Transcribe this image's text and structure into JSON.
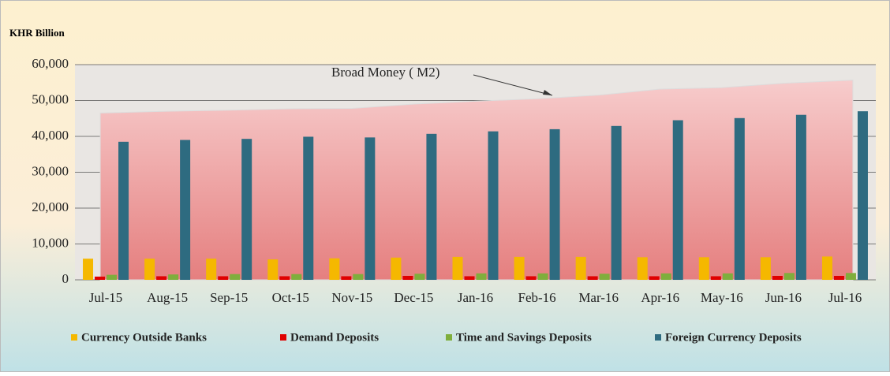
{
  "chart_data": {
    "type": "bar",
    "y_label": "KHR Billion",
    "categories": [
      "Jul-15",
      "Aug-15",
      "Sep-15",
      "Oct-15",
      "Nov-15",
      "Dec-15",
      "Jan-16",
      "Feb-16",
      "Mar-16",
      "Apr-16",
      "May-16",
      "Jun-16",
      "Jul-16"
    ],
    "series": [
      {
        "name": "Currency Outside Banks",
        "color": "#f5b800",
        "values": [
          5900,
          5900,
          5900,
          5700,
          6000,
          6200,
          6400,
          6400,
          6400,
          6300,
          6300,
          6300,
          6500
        ]
      },
      {
        "name": "Demand Deposits",
        "color": "#e00000",
        "values": [
          900,
          1000,
          1000,
          1000,
          1000,
          1100,
          1000,
          1000,
          1000,
          1000,
          1000,
          1100,
          1100
        ]
      },
      {
        "name": "Time and Savings Deposits",
        "color": "#7fae3c",
        "values": [
          1400,
          1500,
          1600,
          1600,
          1600,
          1700,
          1800,
          1800,
          1700,
          1800,
          1800,
          1900,
          1900
        ]
      },
      {
        "name": "Foreign Currency Deposits",
        "color": "#2e6b80",
        "values": [
          38500,
          39000,
          39300,
          39900,
          39700,
          40700,
          41400,
          42000,
          42900,
          44500,
          45100,
          46000,
          47000
        ]
      }
    ],
    "area": {
      "name": "Broad Money ( M2)",
      "values": [
        46500,
        47000,
        47300,
        47700,
        47800,
        49000,
        49800,
        50500,
        51500,
        53200,
        53600,
        54800,
        55700
      ]
    },
    "ylim": [
      0,
      60000
    ],
    "yticks": [
      0,
      {
        "value": 10000,
        "label": "10,000"
      },
      {
        "value": 20000,
        "label": "20,000"
      },
      {
        "value": 30000,
        "label": "30,000"
      },
      {
        "value": 40000,
        "label": "40,000"
      },
      {
        "value": 50000,
        "label": "50,000"
      },
      {
        "value": 60000,
        "label": "60,000"
      }
    ],
    "grid": true,
    "legend": "bottom"
  }
}
